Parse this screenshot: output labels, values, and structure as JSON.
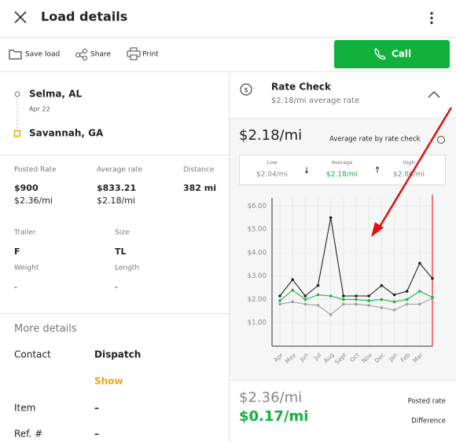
{
  "header": {
    "title": "Load details"
  },
  "toolbar": {
    "save": "Save load",
    "share": "Share",
    "print": "Print",
    "call": "Call"
  },
  "route": {
    "origin": "Selma, AL",
    "date": "Apr 22",
    "destination": "Savannah, GA"
  },
  "rates": [
    {
      "label": "Posted Rate",
      "value": "$900",
      "per_mile": "$2.36/mi"
    },
    {
      "label": "Average rate",
      "value": "$833.21",
      "per_mile": "$2.18/mi"
    },
    {
      "label": "Distance",
      "value": "382 mi"
    }
  ],
  "equipment": [
    {
      "label": "Trailer",
      "value": "F"
    },
    {
      "label": "Size",
      "value": "TL"
    },
    {
      "label": "Weight",
      "value": "-"
    },
    {
      "label": "Length",
      "value": "-"
    }
  ],
  "more_details": {
    "title": "More details",
    "rows": [
      {
        "label": "Contact",
        "value": "Dispatch"
      },
      {
        "label": "Item",
        "value": "–"
      },
      {
        "label": "Ref. #",
        "value": "–"
      }
    ],
    "show": "Show"
  },
  "rate_check": {
    "title": "Rate Check",
    "subtitle": "$2.18/mi average rate",
    "headline": "$2.18/mi",
    "headline_label": "Average rate by rate check",
    "range": [
      {
        "label": "Low",
        "value": "$2.04/mi"
      },
      {
        "label": "Average",
        "value": "$2.18/mi"
      },
      {
        "label": "High",
        "value": "$2.80/mi"
      }
    ],
    "posted": "$2.36/mi",
    "posted_label": "Posted rate",
    "difference": "$0.17/mi",
    "difference_label": "Difference"
  },
  "chart_data": {
    "type": "line",
    "categories": [
      "Apr",
      "May",
      "Jun",
      "Jul",
      "Aug",
      "Sept",
      "Oct",
      "Nov",
      "Dec",
      "Jan",
      "Feb",
      "Mar",
      null
    ],
    "series": [
      {
        "name": "High",
        "color": "#222222",
        "values": [
          2.15,
          2.85,
          2.15,
          2.6,
          5.5,
          2.15,
          2.15,
          2.15,
          2.6,
          2.2,
          2.35,
          3.55,
          2.9
        ]
      },
      {
        "name": "Average",
        "color": "#1db33f",
        "values": [
          1.95,
          2.4,
          2.0,
          2.2,
          2.15,
          2.0,
          2.0,
          1.95,
          2.0,
          1.9,
          2.0,
          2.35,
          2.1
        ]
      },
      {
        "name": "Low",
        "color": "#a0a0a0",
        "values": [
          1.8,
          1.9,
          1.8,
          1.75,
          1.35,
          1.8,
          1.8,
          1.75,
          1.65,
          1.55,
          1.8,
          1.8,
          2.05
        ]
      }
    ],
    "ylim": [
      0,
      6.35
    ],
    "yticks": [
      {
        "value": 1,
        "label": "$1.00"
      },
      {
        "value": 2,
        "label": "$2.00"
      },
      {
        "value": 3,
        "label": "$3.00"
      },
      {
        "value": 4,
        "label": "$4.00"
      },
      {
        "value": 5,
        "label": "$5.00"
      },
      {
        "value": 6,
        "label": "$6.00"
      }
    ],
    "grid": true
  }
}
